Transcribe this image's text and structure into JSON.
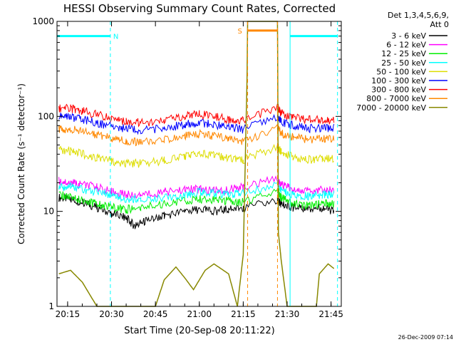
{
  "chart_data": {
    "type": "line",
    "title": "HESSI Observing Summary Count Rates, Corrected",
    "xlabel": "Start Time (20-Sep-08 20:11:22)",
    "ylabel": "Corrected Count Rate (s⁻¹ detector⁻¹)",
    "x_unit": "minutes after 20:00 UT",
    "x_ticks": [
      {
        "value": 15,
        "label": "20:15"
      },
      {
        "value": 30,
        "label": "20:30"
      },
      {
        "value": 45,
        "label": "20:45"
      },
      {
        "value": 60,
        "label": "21:00"
      },
      {
        "value": 75,
        "label": "21:15"
      },
      {
        "value": 90,
        "label": "21:30"
      },
      {
        "value": 105,
        "label": "21:45"
      }
    ],
    "xlim": [
      11.37,
      108.5
    ],
    "ylim": [
      1,
      1000
    ],
    "y_scale": "log",
    "y_ticks": [
      {
        "value": 1,
        "label": "1"
      },
      {
        "value": 10,
        "label": "10"
      },
      {
        "value": 100,
        "label": "100"
      },
      {
        "value": 1000,
        "label": "1000"
      }
    ],
    "grid": false,
    "legend_position": "right, outside plot",
    "legend_header": [
      "Det 1,3,4,5,6,9,",
      "Att 0"
    ],
    "data_gap": [
      76.5,
      86.7
    ],
    "series": [
      {
        "name": "3 - 6 keV",
        "color": "#000000",
        "points": [
          [
            12,
            14
          ],
          [
            16,
            13.5
          ],
          [
            20,
            12.5
          ],
          [
            25,
            11
          ],
          [
            30,
            9.5
          ],
          [
            35,
            8.5
          ],
          [
            38,
            7
          ],
          [
            42,
            8
          ],
          [
            48,
            9
          ],
          [
            55,
            10
          ],
          [
            60,
            10.5
          ],
          [
            65,
            10
          ],
          [
            70,
            10.5
          ],
          [
            75,
            11
          ],
          [
            86.7,
            13
          ],
          [
            88,
            12
          ],
          [
            92,
            11
          ],
          [
            97,
            10.5
          ],
          [
            102,
            11
          ],
          [
            106,
            10
          ]
        ]
      },
      {
        "name": "6 - 12 keV",
        "color": "#ff00ff",
        "points": [
          [
            12,
            21
          ],
          [
            16,
            20
          ],
          [
            20,
            19
          ],
          [
            25,
            18
          ],
          [
            30,
            16
          ],
          [
            35,
            15
          ],
          [
            40,
            15
          ],
          [
            48,
            16
          ],
          [
            55,
            17
          ],
          [
            60,
            17
          ],
          [
            65,
            16.5
          ],
          [
            70,
            17
          ],
          [
            75,
            18
          ],
          [
            86.7,
            22
          ],
          [
            88,
            19
          ],
          [
            92,
            17
          ],
          [
            97,
            16.5
          ],
          [
            102,
            17
          ],
          [
            106,
            17
          ]
        ]
      },
      {
        "name": "12 - 25 keV",
        "color": "#00ee00",
        "points": [
          [
            12,
            15
          ],
          [
            16,
            14
          ],
          [
            20,
            13
          ],
          [
            25,
            12
          ],
          [
            30,
            11
          ],
          [
            35,
            10.5
          ],
          [
            40,
            11
          ],
          [
            48,
            12
          ],
          [
            55,
            13
          ],
          [
            60,
            13.5
          ],
          [
            65,
            13
          ],
          [
            70,
            13
          ],
          [
            75,
            12.5
          ],
          [
            86.7,
            17
          ],
          [
            88,
            14
          ],
          [
            92,
            12
          ],
          [
            97,
            11.5
          ],
          [
            102,
            12
          ],
          [
            106,
            12
          ]
        ]
      },
      {
        "name": "25 - 50 keV",
        "color": "#00ffff",
        "points": [
          [
            12,
            18
          ],
          [
            16,
            18
          ],
          [
            20,
            17
          ],
          [
            25,
            16
          ],
          [
            30,
            15
          ],
          [
            35,
            13.5
          ],
          [
            40,
            13.5
          ],
          [
            48,
            14
          ],
          [
            55,
            15
          ],
          [
            60,
            16
          ],
          [
            65,
            15.5
          ],
          [
            70,
            15
          ],
          [
            75,
            15.5
          ],
          [
            86.7,
            19
          ],
          [
            88,
            17
          ],
          [
            92,
            15
          ],
          [
            97,
            14.5
          ],
          [
            102,
            15
          ],
          [
            106,
            15
          ]
        ]
      },
      {
        "name": "50 - 100 keV",
        "color": "#dddd00",
        "points": [
          [
            12,
            44
          ],
          [
            16,
            43
          ],
          [
            20,
            40
          ],
          [
            25,
            37
          ],
          [
            30,
            34
          ],
          [
            35,
            32
          ],
          [
            40,
            32
          ],
          [
            48,
            34
          ],
          [
            55,
            38
          ],
          [
            60,
            41
          ],
          [
            65,
            39
          ],
          [
            70,
            36
          ],
          [
            75,
            35
          ],
          [
            86.7,
            48
          ],
          [
            88,
            42
          ],
          [
            92,
            37
          ],
          [
            97,
            35
          ],
          [
            102,
            36
          ],
          [
            106,
            36
          ]
        ]
      },
      {
        "name": "100 - 300 keV",
        "color": "#0000ff",
        "points": [
          [
            12,
            100
          ],
          [
            16,
            99
          ],
          [
            20,
            93
          ],
          [
            25,
            85
          ],
          [
            30,
            79
          ],
          [
            35,
            74
          ],
          [
            40,
            72
          ],
          [
            48,
            75
          ],
          [
            55,
            82
          ],
          [
            60,
            86
          ],
          [
            65,
            82
          ],
          [
            70,
            77
          ],
          [
            75,
            73
          ],
          [
            86.7,
            100
          ],
          [
            88,
            88
          ],
          [
            92,
            80
          ],
          [
            97,
            75
          ],
          [
            102,
            74
          ],
          [
            106,
            75
          ]
        ]
      },
      {
        "name": "300 - 800 keV",
        "color": "#ff0000",
        "points": [
          [
            12,
            122
          ],
          [
            16,
            121
          ],
          [
            20,
            114
          ],
          [
            25,
            104
          ],
          [
            30,
            95
          ],
          [
            35,
            88
          ],
          [
            40,
            86
          ],
          [
            48,
            90
          ],
          [
            55,
            100
          ],
          [
            60,
            105
          ],
          [
            65,
            100
          ],
          [
            70,
            93
          ],
          [
            75,
            90
          ],
          [
            86.7,
            125
          ],
          [
            88,
            108
          ],
          [
            92,
            97
          ],
          [
            97,
            92
          ],
          [
            102,
            91
          ],
          [
            106,
            93
          ]
        ]
      },
      {
        "name": "800 - 7000 keV",
        "color": "#ff8800",
        "points": [
          [
            12,
            74
          ],
          [
            16,
            73
          ],
          [
            20,
            69
          ],
          [
            25,
            64
          ],
          [
            30,
            59
          ],
          [
            35,
            55
          ],
          [
            40,
            54
          ],
          [
            48,
            56
          ],
          [
            55,
            62
          ],
          [
            60,
            65
          ],
          [
            65,
            62
          ],
          [
            70,
            58
          ],
          [
            75,
            55
          ],
          [
            86.7,
            75
          ],
          [
            88,
            66
          ],
          [
            92,
            60
          ],
          [
            97,
            57
          ],
          [
            102,
            57
          ],
          [
            106,
            58
          ]
        ]
      },
      {
        "name": "7000 - 20000 keV",
        "color": "#888800",
        "points": [
          [
            12,
            2.2
          ],
          [
            16,
            2.4
          ],
          [
            20,
            1.8
          ],
          [
            25,
            1
          ],
          [
            45,
            1
          ],
          [
            48,
            1.9
          ],
          [
            52,
            2.6
          ],
          [
            55,
            2
          ],
          [
            58,
            1.5
          ],
          [
            62,
            2.4
          ],
          [
            65,
            2.8
          ],
          [
            70,
            2.2
          ],
          [
            73,
            1
          ],
          [
            75,
            3.5
          ],
          [
            76.3,
            250
          ],
          [
            76.5,
            1000
          ],
          [
            86.7,
            1000
          ],
          [
            87,
            6
          ],
          [
            88,
            3
          ],
          [
            90,
            1
          ],
          [
            100,
            1
          ],
          [
            101,
            2.2
          ],
          [
            104,
            2.8
          ],
          [
            106,
            2.5
          ]
        ]
      }
    ],
    "segments": [
      {
        "label": "N",
        "color": "#00ffff",
        "level": 700,
        "start": 11.37,
        "end": 29.6
      },
      {
        "label": "S",
        "color": "#ff8800",
        "level": 800,
        "start": 76.5,
        "end": 86.7
      },
      {
        "label": "",
        "color": "#00ffff",
        "level": 700,
        "start": 91.0,
        "end": 107.2
      }
    ]
  },
  "footer": {
    "timestamp": "26-Dec-2009 07:14"
  }
}
